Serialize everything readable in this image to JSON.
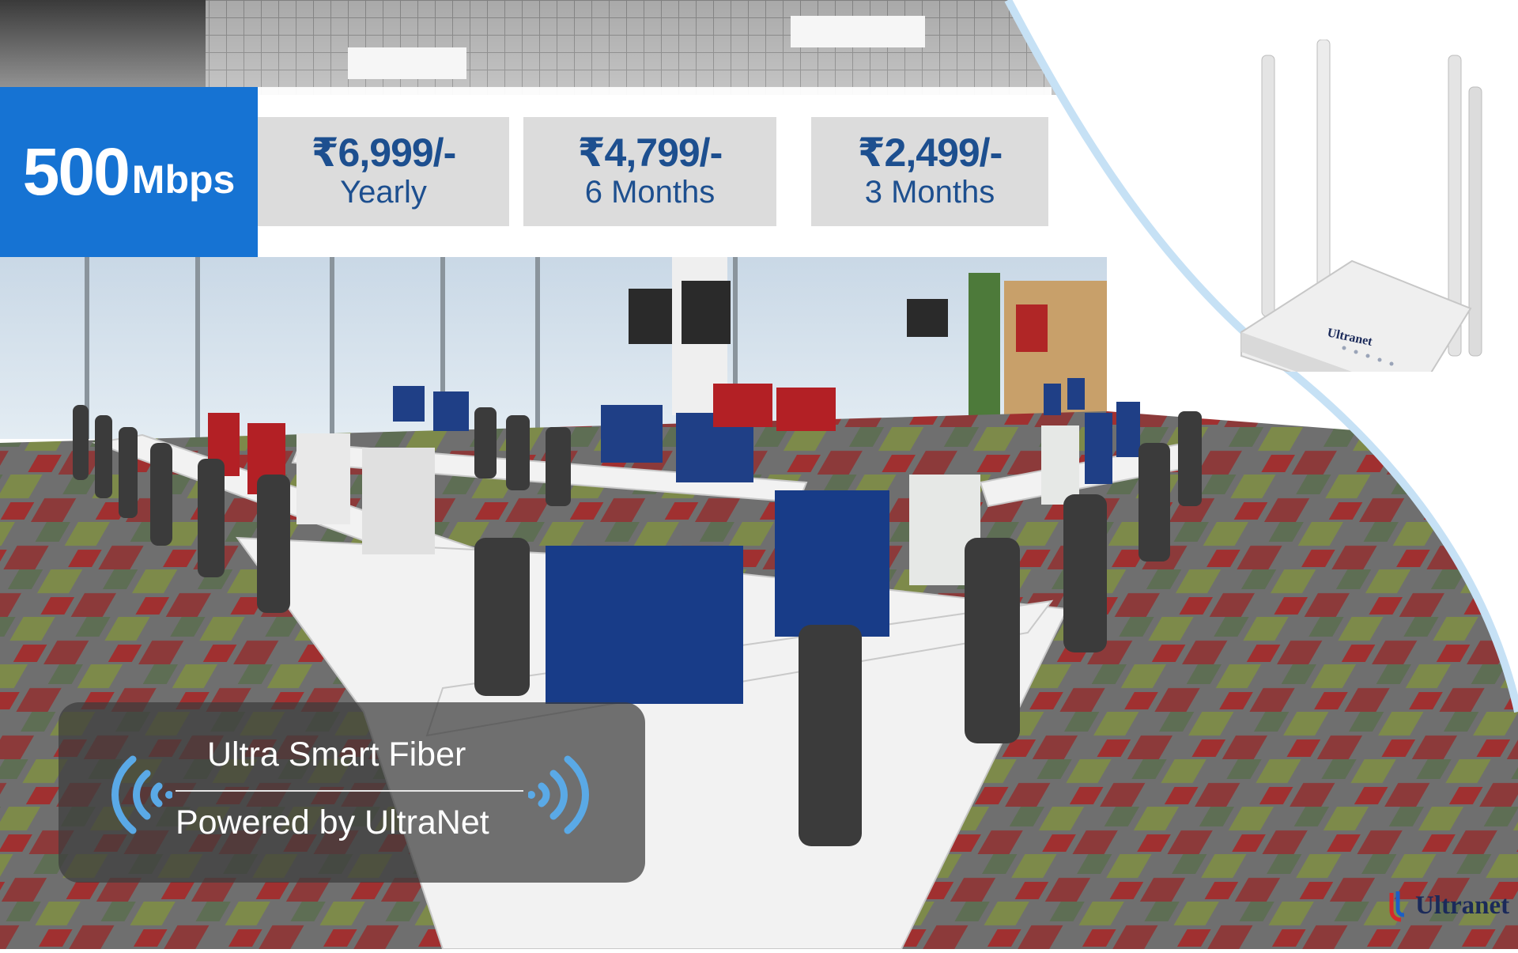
{
  "speed": {
    "value": "500",
    "unit": "Mbps"
  },
  "plans": [
    {
      "price": "₹6,999/-",
      "period": "Yearly"
    },
    {
      "price": "₹4,799/-",
      "period": "6 Months"
    },
    {
      "price": "₹2,499/-",
      "period": "3 Months"
    }
  ],
  "badge": {
    "title": "Ultra Smart Fiber",
    "subtitle": "Powered by UltraNet"
  },
  "router_label": "Ultranet",
  "brand": {
    "name": "Ultranet"
  },
  "colors": {
    "accent": "#1673d3",
    "price_text": "#1d4f8f",
    "wave": "#5aa9e6"
  }
}
